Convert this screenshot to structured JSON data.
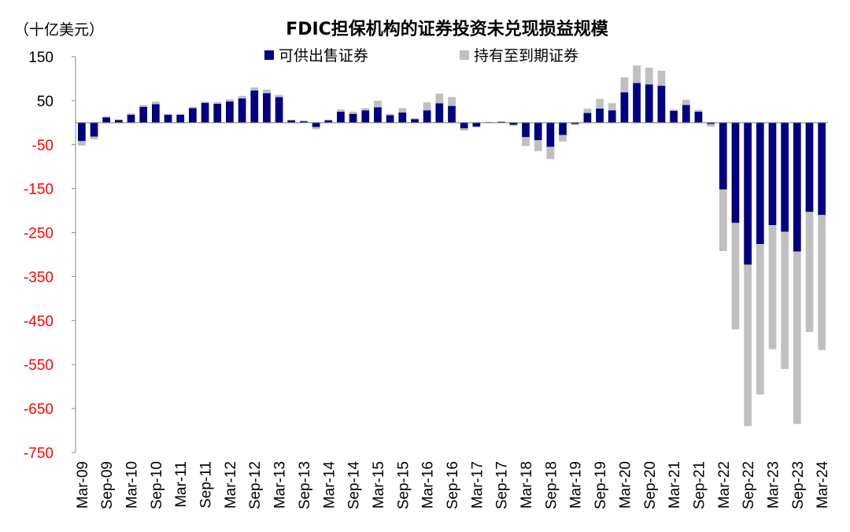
{
  "chart_data": {
    "type": "bar",
    "stacked": true,
    "title": "FDIC担保机构的证券投资未兑现损益规模",
    "unit_label": "（十亿美元）",
    "ylim": [
      -750,
      150
    ],
    "yticks": [
      150,
      50,
      -50,
      -150,
      -250,
      -350,
      -450,
      -550,
      -650,
      -750
    ],
    "negative_tick_color": "#ff0000",
    "positive_tick_color": "#000000",
    "legend_position": "top-center",
    "categories": [
      "Mar-09",
      "Jun-09",
      "Sep-09",
      "Dec-09",
      "Mar-10",
      "Jun-10",
      "Sep-10",
      "Dec-10",
      "Mar-11",
      "Jun-11",
      "Sep-11",
      "Dec-11",
      "Mar-12",
      "Jun-12",
      "Sep-12",
      "Dec-12",
      "Mar-13",
      "Jun-13",
      "Sep-13",
      "Dec-13",
      "Mar-14",
      "Jun-14",
      "Sep-14",
      "Dec-14",
      "Mar-15",
      "Jun-15",
      "Sep-15",
      "Dec-15",
      "Mar-16",
      "Jun-16",
      "Sep-16",
      "Dec-16",
      "Mar-17",
      "Jun-17",
      "Sep-17",
      "Dec-17",
      "Mar-18",
      "Jun-18",
      "Sep-18",
      "Dec-18",
      "Mar-19",
      "Jun-19",
      "Sep-19",
      "Dec-19",
      "Mar-20",
      "Jun-20",
      "Sep-20",
      "Dec-20",
      "Mar-21",
      "Jun-21",
      "Sep-21",
      "Dec-21",
      "Mar-22",
      "Jun-22",
      "Sep-22",
      "Dec-22",
      "Mar-23",
      "Jun-23",
      "Sep-23",
      "Dec-23",
      "Mar-24"
    ],
    "x_tick_labels": [
      "Mar-09",
      "Sep-09",
      "Mar-10",
      "Sep-10",
      "Mar-11",
      "Sep-11",
      "Mar-12",
      "Sep-12",
      "Mar-13",
      "Sep-13",
      "Mar-14",
      "Sep-14",
      "Mar-15",
      "Sep-15",
      "Mar-16",
      "Sep-16",
      "Mar-17",
      "Sep-17",
      "Mar-18",
      "Sep-18",
      "Mar-19",
      "Sep-19",
      "Mar-20",
      "Sep-20",
      "Mar-21",
      "Sep-21",
      "Mar-22",
      "Sep-22",
      "Mar-23",
      "Sep-23",
      "Mar-24"
    ],
    "series": [
      {
        "name": "可供出售证券",
        "color": "#000080",
        "values": [
          -42,
          -32,
          12,
          6,
          18,
          36,
          42,
          18,
          18,
          33,
          45,
          43,
          48,
          55,
          73,
          67,
          58,
          5,
          3,
          -10,
          5,
          25,
          20,
          28,
          35,
          17,
          23,
          8,
          28,
          44,
          38,
          -13,
          -9,
          1,
          2,
          -5,
          -33,
          -40,
          -55,
          -28,
          -3,
          22,
          32,
          28,
          69,
          90,
          87,
          84,
          27,
          40,
          25,
          -3,
          -152,
          -228,
          -323,
          -276,
          -233,
          -248,
          -293,
          -203,
          -210
        ]
      },
      {
        "name": "持有至到期证券",
        "color": "#c0c0c0",
        "values": [
          -10,
          -6,
          2,
          1,
          3,
          4,
          6,
          2,
          2,
          3,
          3,
          4,
          5,
          6,
          7,
          8,
          5,
          2,
          2,
          -5,
          2,
          5,
          5,
          5,
          15,
          3,
          10,
          2,
          18,
          22,
          20,
          -5,
          -2,
          1,
          1,
          -2,
          -20,
          -25,
          -28,
          -15,
          -2,
          10,
          22,
          16,
          34,
          40,
          38,
          34,
          3,
          12,
          4,
          -6,
          -140,
          -242,
          -367,
          -342,
          -282,
          -312,
          -392,
          -273,
          -307
        ]
      }
    ]
  }
}
